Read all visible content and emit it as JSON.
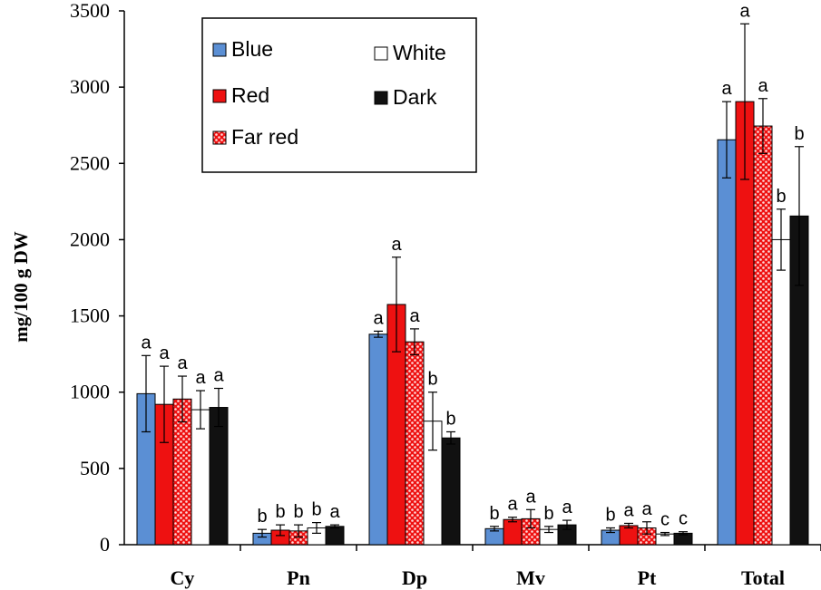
{
  "chart_data": {
    "type": "bar",
    "title": "",
    "xlabel": "",
    "ylabel": "mg/100  g DW",
    "ylim": [
      0,
      3500
    ],
    "yticks": [
      0,
      500,
      1000,
      1500,
      2000,
      2500,
      3000,
      3500
    ],
    "categories": [
      "Cy",
      "Pn",
      "Dp",
      "Mv",
      "Pt",
      "Total"
    ],
    "legend_position": "top-left",
    "grid": false,
    "series": [
      {
        "name": "Blue",
        "color": "#5b8fd4",
        "pattern": "solid",
        "values": [
          990,
          75,
          1380,
          105,
          95,
          2655
        ],
        "errors": [
          250,
          25,
          20,
          15,
          15,
          250
        ],
        "labels": [
          "a",
          "b",
          "a",
          "b",
          "b",
          "a"
        ]
      },
      {
        "name": "Red",
        "color": "#ee1111",
        "pattern": "solid",
        "values": [
          920,
          95,
          1575,
          165,
          125,
          2905
        ],
        "errors": [
          250,
          35,
          310,
          15,
          15,
          510
        ],
        "labels": [
          "a",
          "b",
          "a",
          "a",
          "a",
          "a"
        ]
      },
      {
        "name": "Far red",
        "color": "#ee1111",
        "pattern": "dots",
        "values": [
          955,
          90,
          1330,
          170,
          110,
          2745
        ],
        "errors": [
          150,
          40,
          85,
          60,
          40,
          180
        ],
        "labels": [
          "a",
          "b",
          "a",
          "a",
          "a",
          "a"
        ]
      },
      {
        "name": "White",
        "color": "#ffffff",
        "pattern": "solid",
        "values": [
          885,
          110,
          810,
          100,
          70,
          2000
        ],
        "errors": [
          125,
          35,
          190,
          20,
          10,
          200
        ],
        "labels": [
          "a",
          "b",
          "b",
          "b",
          "c",
          "b"
        ]
      },
      {
        "name": "Dark",
        "color": "#111111",
        "pattern": "solid",
        "values": [
          900,
          120,
          700,
          130,
          75,
          2155
        ],
        "errors": [
          125,
          10,
          40,
          30,
          10,
          455
        ],
        "labels": [
          "a",
          "a",
          "b",
          "a",
          "c",
          "b"
        ]
      }
    ]
  }
}
